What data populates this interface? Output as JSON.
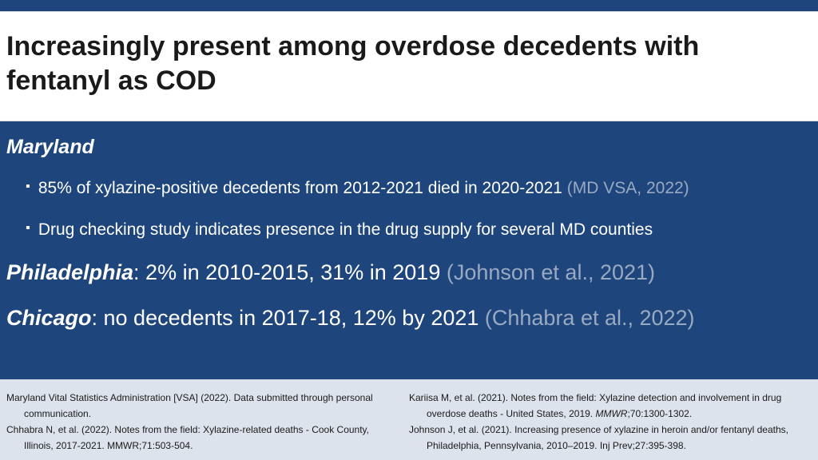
{
  "title": "Increasingly present among overdose decedents with fentanyl as COD",
  "maryland": {
    "heading": "Maryland",
    "bullets": [
      {
        "text": "85% of xylazine-positive decedents from 2012-2021 died in 2020-2021 ",
        "cite": "(MD VSA, 2022)"
      },
      {
        "text": "Drug checking study indicates presence in the drug supply for several MD counties",
        "cite": ""
      }
    ]
  },
  "philadelphia": {
    "label": "Philadelphia",
    "text": ": 2% in 2010-2015, 31% in 2019 ",
    "cite": "(Johnson et al., 2021)"
  },
  "chicago": {
    "label": "Chicago",
    "text": ": no decedents in 2017-18, 12% by 2021 ",
    "cite": "(Chhabra et al., 2022)"
  },
  "references": {
    "left": [
      "Maryland Vital Statistics Administration [VSA] (2022). Data submitted through personal communication.",
      "Chhabra N, et al. (2022). Notes from the field: Xylazine-related deaths - Cook County, Illinois, 2017-2021. MMWR;71:503-504."
    ],
    "right": [
      {
        "pre": "Kariisa M, et al. (2021). Notes from the field: Xylazine detection and involvement in drug overdose deaths - United States, 2019. ",
        "italic": "MMWR",
        "post": ";70:1300-1302."
      },
      {
        "pre": "Johnson J, et al. (2021). Increasing presence of xylazine in heroin and/or fentanyl deaths, Philadelphia, Pennsylvania, 2010–2019. Inj Prev;27:395-398.",
        "italic": "",
        "post": ""
      }
    ]
  },
  "colors": {
    "background": "#1f467c",
    "citation": "#9aa9c2",
    "references_bg": "#dde3ec"
  }
}
